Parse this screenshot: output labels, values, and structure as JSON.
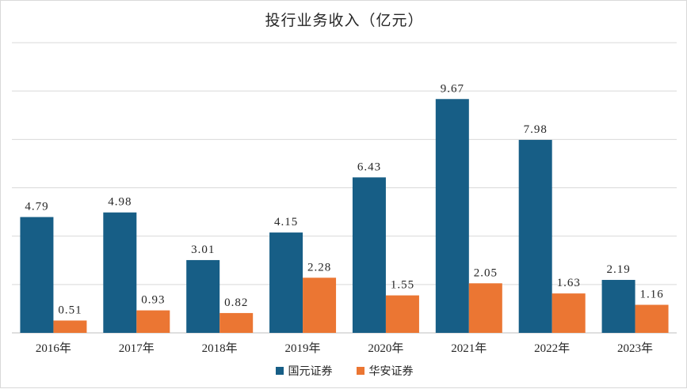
{
  "chart_data": {
    "type": "bar",
    "title": "投行业务收入（亿元）",
    "categories": [
      "2016年",
      "2017年",
      "2018年",
      "2019年",
      "2020年",
      "2021年",
      "2022年",
      "2023年"
    ],
    "series": [
      {
        "name": "国元证券",
        "color": "#175E86",
        "values": [
          4.79,
          4.98,
          3.01,
          4.15,
          6.43,
          9.67,
          7.98,
          2.19
        ]
      },
      {
        "name": "华安证券",
        "color": "#EB7633",
        "values": [
          0.51,
          0.93,
          0.82,
          2.28,
          1.55,
          2.05,
          1.63,
          1.16
        ]
      }
    ],
    "value_labels": {
      "国元证券": [
        "4.79",
        "4.98",
        "3.01",
        "4.15",
        "6.43",
        "9.67",
        "7.98",
        "2.19"
      ],
      "华安证券": [
        "0.51",
        "0.93",
        "0.82",
        "2.28",
        "1.55",
        "2.05",
        "1.63",
        "1.16"
      ]
    },
    "ylim": [
      0,
      12
    ],
    "grid": true,
    "legend_position": "bottom"
  }
}
